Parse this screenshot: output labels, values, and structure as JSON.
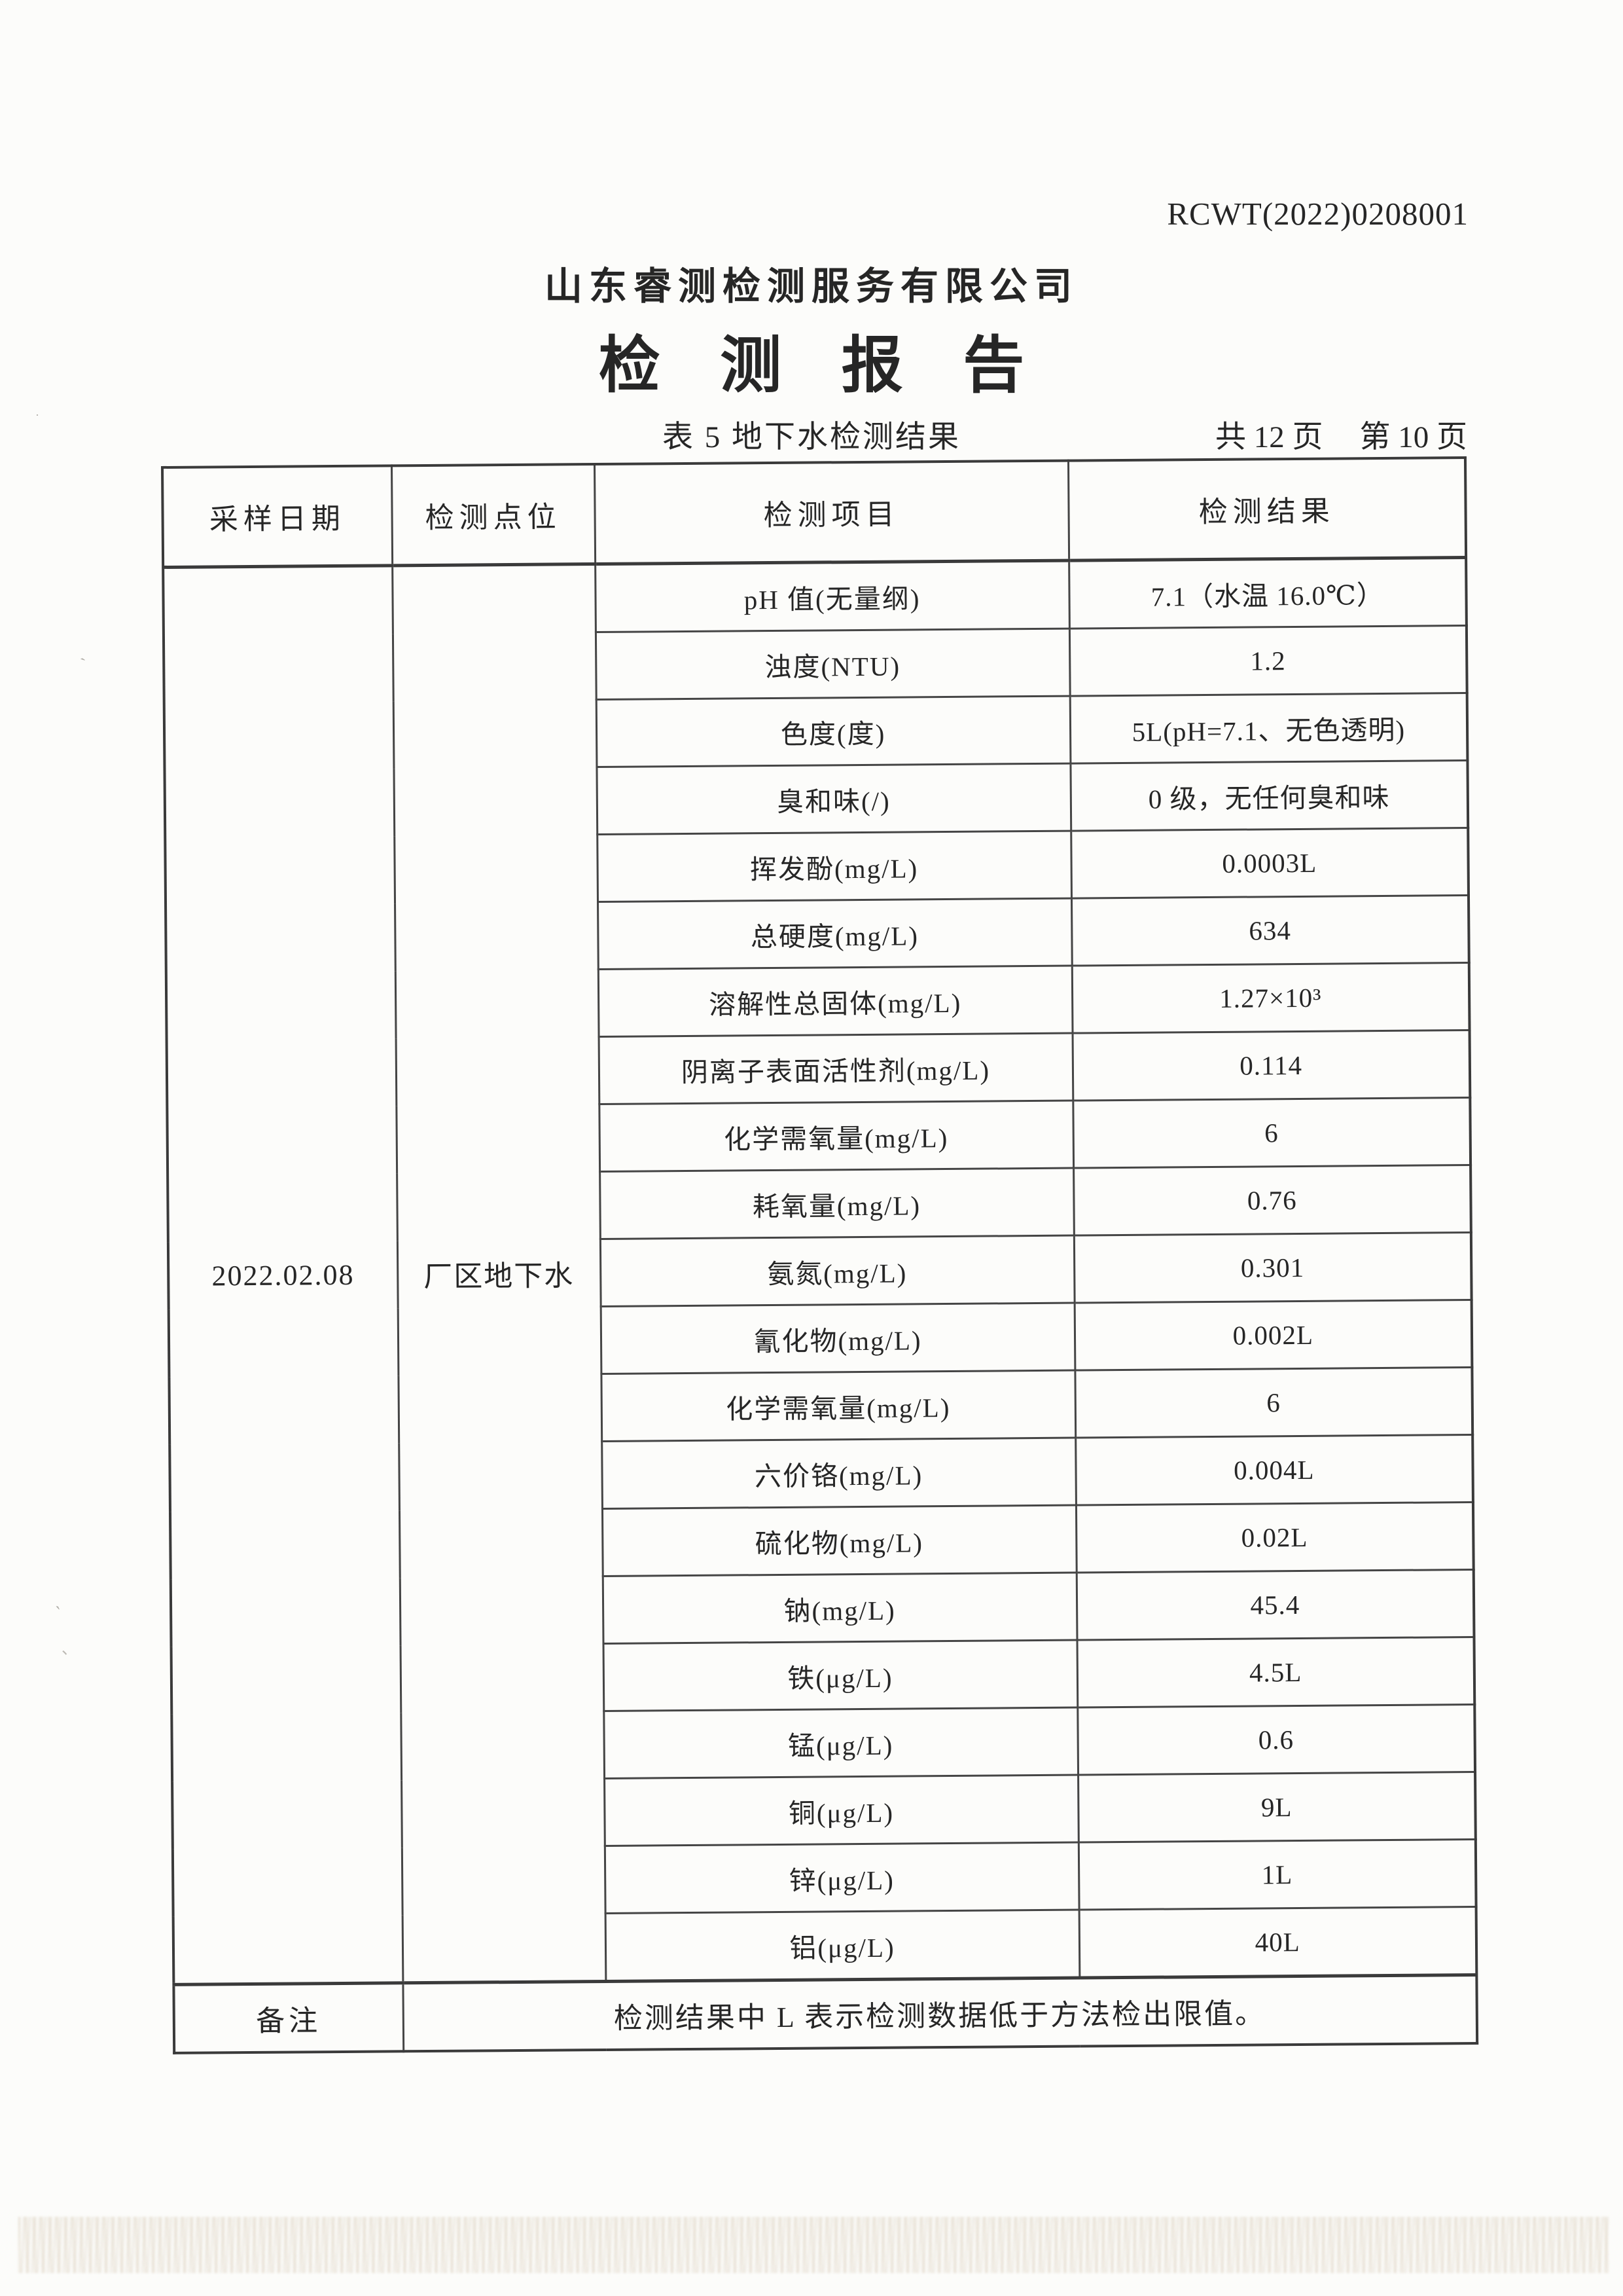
{
  "page": {
    "report_no": "RCWT(2022)0208001",
    "company": "山东睿测检测服务有限公司",
    "title": "检 测 报 告",
    "table_caption": "表 5 地下水检测结果",
    "pages_total": "共 12 页",
    "page_current": "第 10 页"
  },
  "table": {
    "headers": [
      "采样日期",
      "检测点位",
      "检测项目",
      "检测结果"
    ],
    "sample_date": "2022.02.08",
    "sample_point": "厂区地下水",
    "rows": [
      {
        "item": "pH 值(无量纲)",
        "result": "7.1（水温 16.0℃）"
      },
      {
        "item": "浊度(NTU)",
        "result": "1.2"
      },
      {
        "item": "色度(度)",
        "result": "5L(pH=7.1、无色透明)"
      },
      {
        "item": "臭和味(/)",
        "result": "0 级，无任何臭和味"
      },
      {
        "item": "挥发酚(mg/L)",
        "result": "0.0003L"
      },
      {
        "item": "总硬度(mg/L)",
        "result": "634"
      },
      {
        "item": "溶解性总固体(mg/L)",
        "result": "1.27×10³"
      },
      {
        "item": "阴离子表面活性剂(mg/L)",
        "result": "0.114"
      },
      {
        "item": "化学需氧量(mg/L)",
        "result": "6"
      },
      {
        "item": "耗氧量(mg/L)",
        "result": "0.76"
      },
      {
        "item": "氨氮(mg/L)",
        "result": "0.301"
      },
      {
        "item": "氰化物(mg/L)",
        "result": "0.002L"
      },
      {
        "item": "化学需氧量(mg/L)",
        "result": "6"
      },
      {
        "item": "六价铬(mg/L)",
        "result": "0.004L"
      },
      {
        "item": "硫化物(mg/L)",
        "result": "0.02L"
      },
      {
        "item": "钠(mg/L)",
        "result": "45.4"
      },
      {
        "item": "铁(μg/L)",
        "result": "4.5L"
      },
      {
        "item": "锰(μg/L)",
        "result": "0.6"
      },
      {
        "item": "铜(μg/L)",
        "result": "9L"
      },
      {
        "item": "锌(μg/L)",
        "result": "1L"
      },
      {
        "item": "铝(μg/L)",
        "result": "40L"
      }
    ],
    "remark_label": "备注",
    "remark_text": "检测结果中 L 表示检测数据低于方法检出限值。"
  }
}
